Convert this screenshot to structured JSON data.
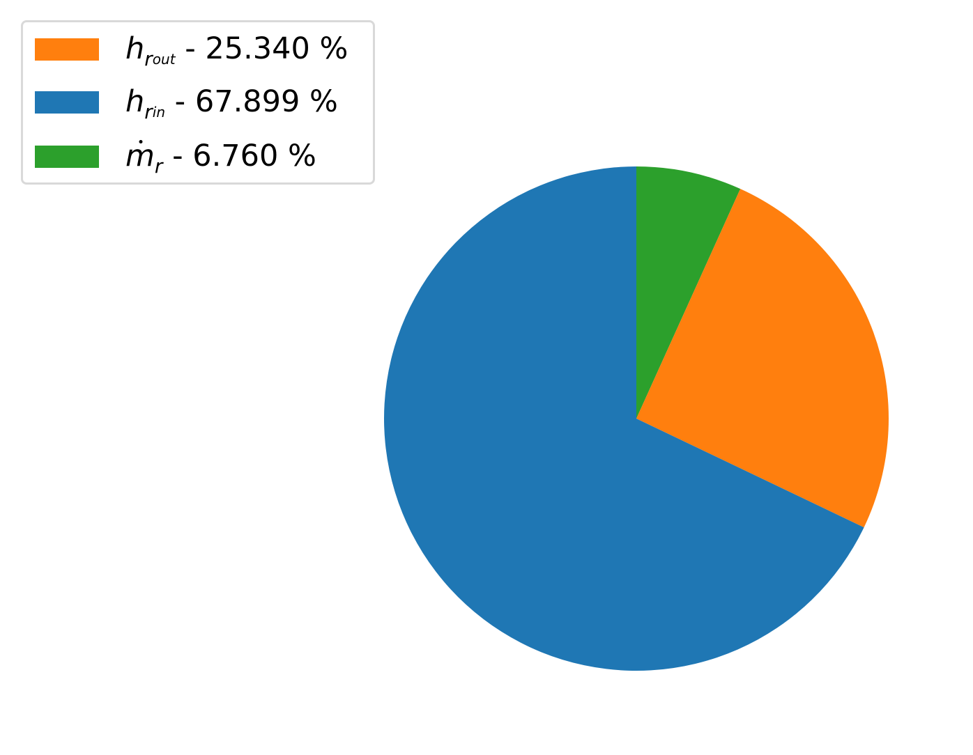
{
  "chart_data": {
    "type": "pie",
    "start_angle_deg": 90,
    "direction": "clockwise",
    "slices": [
      {
        "key": "m_dot_r",
        "symbol": "m",
        "subscript": "r",
        "percent_text": "6.760 %",
        "value": 6.76,
        "color": "#2ca02c"
      },
      {
        "key": "h_r_out",
        "symbol": "h",
        "subscript": "r",
        "subsubscript": "out",
        "percent_text": "25.340 %",
        "value": 25.34,
        "color": "#ff7f0e"
      },
      {
        "key": "h_r_in",
        "symbol": "h",
        "subscript": "r",
        "subsubscript": "in",
        "percent_text": "67.899 %",
        "value": 67.899,
        "color": "#1f77b4"
      }
    ],
    "legend": {
      "placement": "upper-left",
      "order": [
        "h_r_out",
        "h_r_in",
        "m_dot_r"
      ],
      "separator": " - "
    }
  }
}
